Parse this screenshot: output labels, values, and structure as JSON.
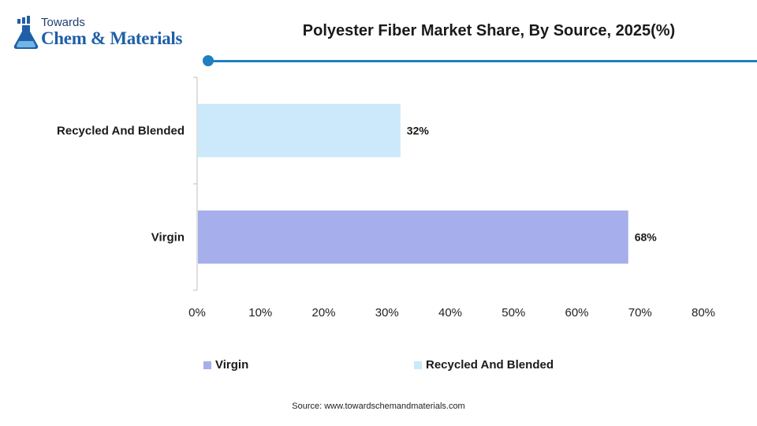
{
  "logo": {
    "top_text": "Towards",
    "main_text": "Chem & Materials",
    "icon": "flask-icon"
  },
  "title": "Polyester Fiber Market Share, By Source, 2025(%)",
  "chart_data": {
    "type": "bar",
    "orientation": "horizontal",
    "title": "Polyester Fiber Market Share, By Source, 2025(%)",
    "categories": [
      "Recycled And Blended",
      "Virgin"
    ],
    "values": [
      32,
      68
    ],
    "data_labels": [
      "32%",
      "68%"
    ],
    "colors": [
      "#cce8fb",
      "#a6aeec"
    ],
    "xlim": [
      0,
      80
    ],
    "x_ticks": [
      "0%",
      "10%",
      "20%",
      "30%",
      "40%",
      "50%",
      "60%",
      "70%",
      "80%"
    ],
    "grid": false,
    "legend_position": "bottom",
    "legend": [
      {
        "name": "Virgin",
        "color": "#a6aeec"
      },
      {
        "name": "Recycled And Blended",
        "color": "#cce8fb"
      }
    ]
  },
  "colors": {
    "accent": "#1f7fbf",
    "brand": "#1f5fa8"
  },
  "source": "Source: www.towardschemandmaterials.com"
}
